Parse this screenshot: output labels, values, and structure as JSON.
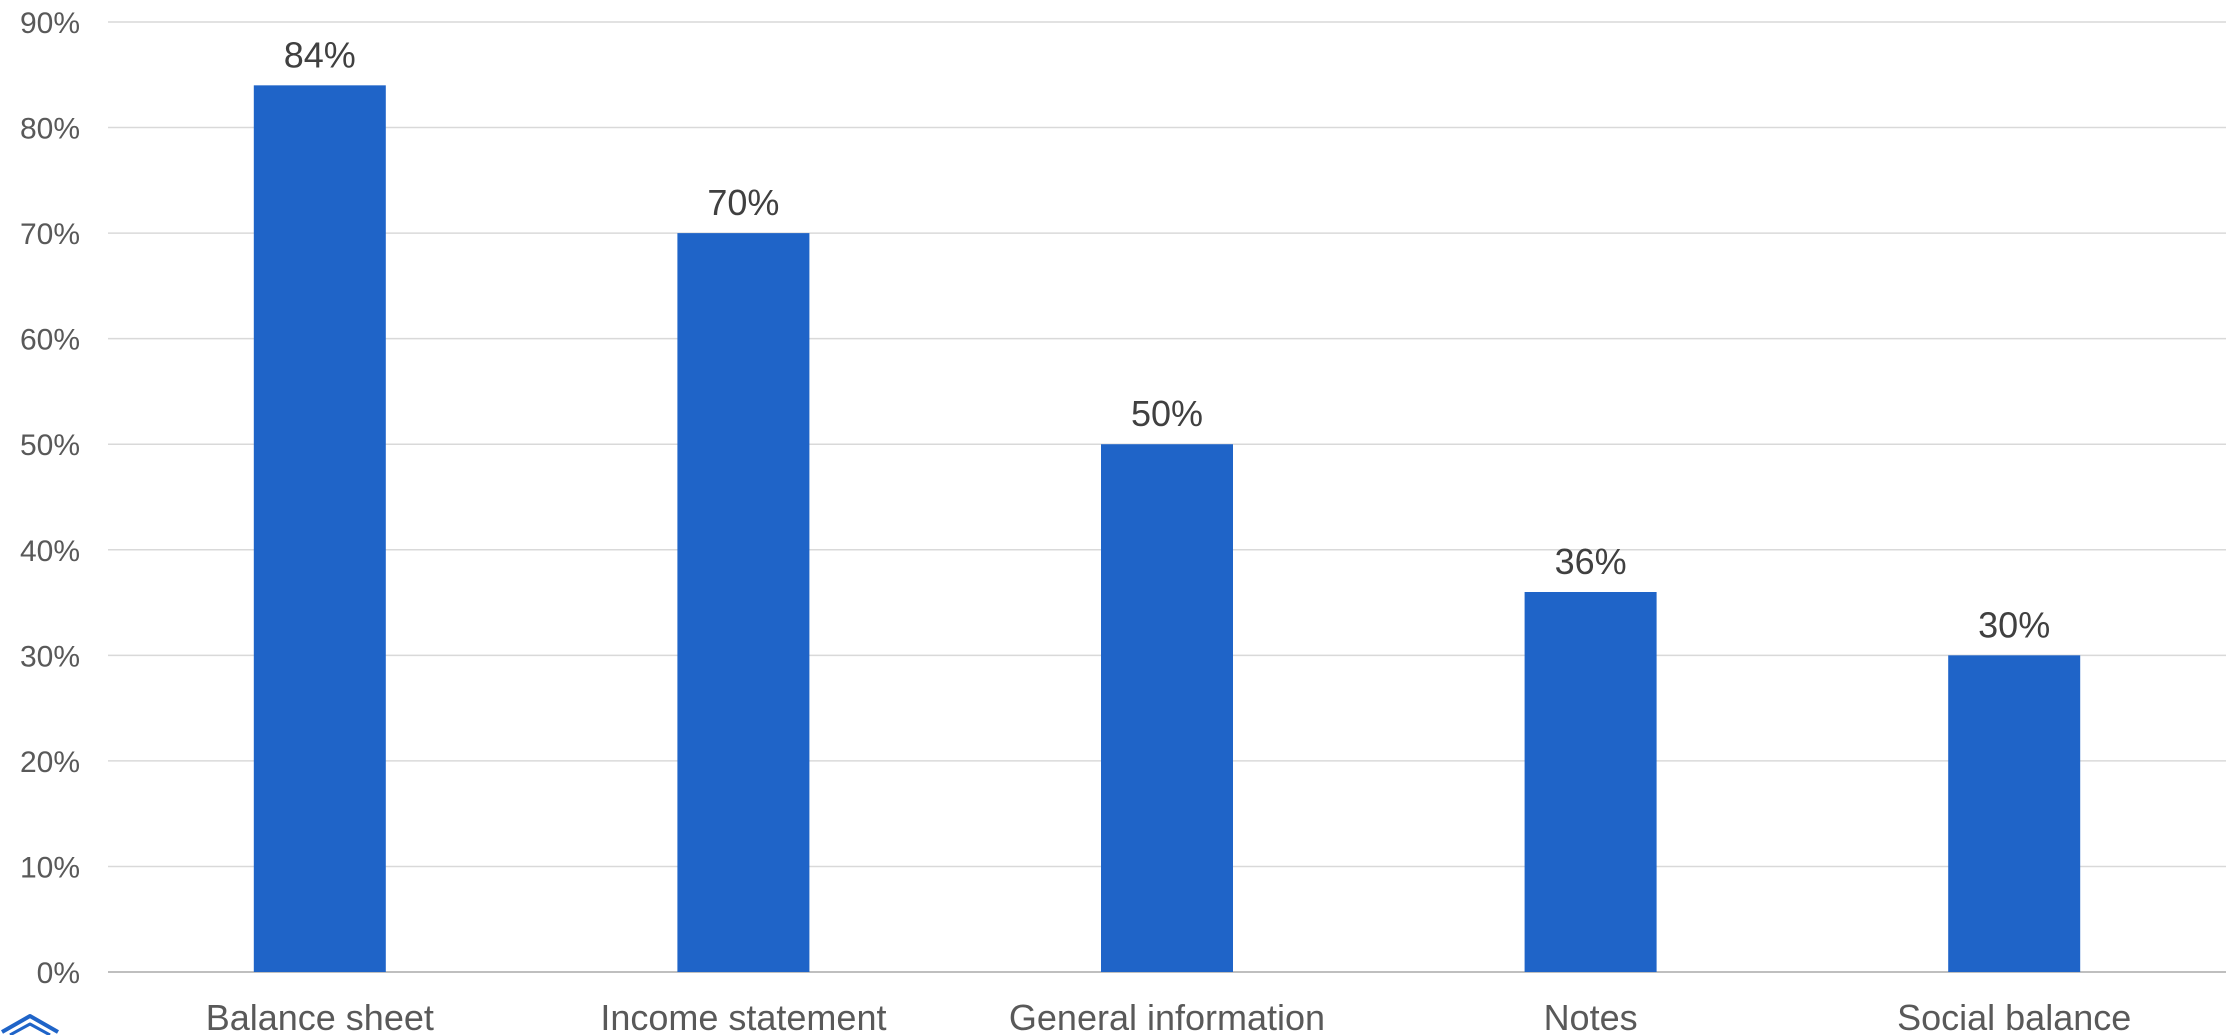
{
  "chart_data": {
    "type": "bar",
    "title": "",
    "xlabel": "",
    "ylabel": "",
    "categories": [
      "Balance sheet",
      "Income statement",
      "General information",
      "Notes",
      "Social balance"
    ],
    "values": [
      84,
      70,
      50,
      36,
      30
    ],
    "data_labels": [
      "84%",
      "70%",
      "50%",
      "36%",
      "30%"
    ],
    "ylim": [
      0,
      90
    ],
    "y_ticks": [
      0,
      10,
      20,
      30,
      40,
      50,
      60,
      70,
      80,
      90
    ],
    "y_tick_labels": [
      "0%",
      "10%",
      "20%",
      "30%",
      "40%",
      "50%",
      "60%",
      "70%",
      "80%",
      "90%"
    ],
    "grid": true,
    "legend": "none",
    "colors": {
      "bar": "#1f64c8",
      "grid": "#d9d9d9",
      "axis_text": "#595959",
      "data_label_text": "#404040"
    }
  },
  "corner_icon": {
    "name": "logo-chevron-icon",
    "color": "#1f64c8"
  }
}
